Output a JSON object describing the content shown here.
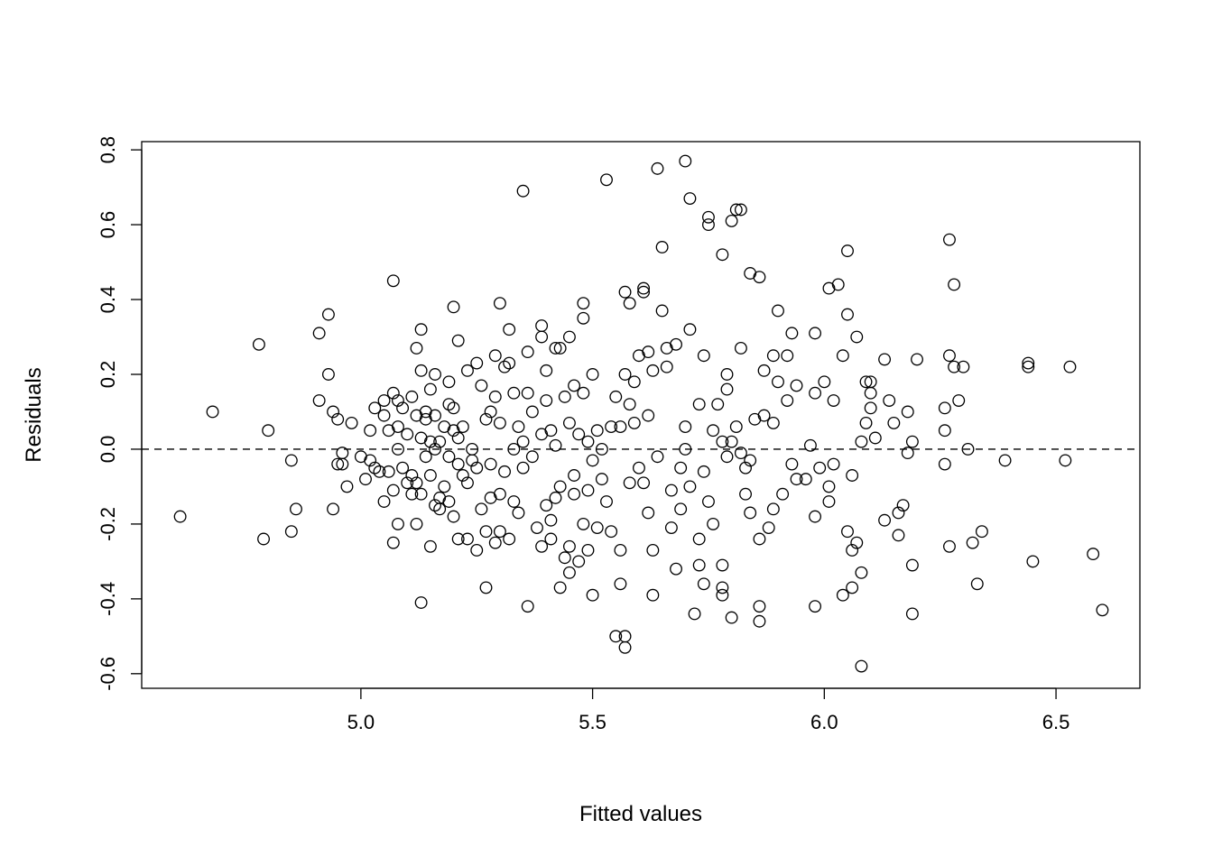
{
  "chart_data": {
    "type": "scatter",
    "title": "",
    "xlabel": "Fitted values",
    "ylabel": "Residuals",
    "xlim": [
      4.527,
      6.681
    ],
    "ylim": [
      -0.639,
      0.822
    ],
    "xticks": [
      5.0,
      5.5,
      6.0,
      6.5
    ],
    "xtick_labels": [
      "5.0",
      "5.5",
      "6.0",
      "6.5"
    ],
    "yticks": [
      -0.6,
      -0.4,
      -0.2,
      0.0,
      0.2,
      0.4,
      0.6,
      0.8
    ],
    "ytick_labels": [
      "-0.6",
      "-0.4",
      "-0.2",
      "0.0",
      "0.2",
      "0.4",
      "0.6",
      "0.8"
    ],
    "grid": false,
    "reference_line": {
      "y": 0,
      "style": "dashed"
    },
    "marker": "open-circle",
    "color": "#000000",
    "points": [
      [
        4.61,
        -0.18
      ],
      [
        4.68,
        0.1
      ],
      [
        4.78,
        0.28
      ],
      [
        4.79,
        -0.24
      ],
      [
        4.8,
        0.05
      ],
      [
        4.85,
        -0.03
      ],
      [
        4.85,
        -0.22
      ],
      [
        4.86,
        -0.16
      ],
      [
        4.91,
        0.31
      ],
      [
        4.91,
        0.13
      ],
      [
        4.93,
        0.36
      ],
      [
        4.93,
        0.2
      ],
      [
        4.94,
        0.1
      ],
      [
        4.94,
        -0.16
      ],
      [
        4.95,
        0.08
      ],
      [
        4.95,
        -0.04
      ],
      [
        4.96,
        -0.01
      ],
      [
        4.96,
        -0.04
      ],
      [
        4.97,
        -0.1
      ],
      [
        4.98,
        0.07
      ],
      [
        5.0,
        -0.02
      ],
      [
        5.01,
        -0.08
      ],
      [
        5.02,
        -0.03
      ],
      [
        5.02,
        0.05
      ],
      [
        5.03,
        -0.05
      ],
      [
        5.03,
        0.11
      ],
      [
        5.04,
        -0.06
      ],
      [
        5.05,
        0.09
      ],
      [
        5.05,
        -0.14
      ],
      [
        5.05,
        0.13
      ],
      [
        5.06,
        0.05
      ],
      [
        5.06,
        -0.06
      ],
      [
        5.07,
        0.45
      ],
      [
        5.07,
        -0.11
      ],
      [
        5.07,
        -0.25
      ],
      [
        5.07,
        0.15
      ],
      [
        5.08,
        0.06
      ],
      [
        5.08,
        0.13
      ],
      [
        5.08,
        0.0
      ],
      [
        5.08,
        -0.2
      ],
      [
        5.09,
        0.11
      ],
      [
        5.09,
        -0.05
      ],
      [
        5.1,
        -0.09
      ],
      [
        5.1,
        0.04
      ],
      [
        5.11,
        0.14
      ],
      [
        5.11,
        -0.07
      ],
      [
        5.11,
        -0.12
      ],
      [
        5.12,
        0.27
      ],
      [
        5.12,
        0.09
      ],
      [
        5.12,
        -0.2
      ],
      [
        5.12,
        -0.09
      ],
      [
        5.13,
        0.32
      ],
      [
        5.13,
        0.21
      ],
      [
        5.13,
        -0.41
      ],
      [
        5.13,
        0.03
      ],
      [
        5.13,
        -0.12
      ],
      [
        5.14,
        0.1
      ],
      [
        5.14,
        0.08
      ],
      [
        5.14,
        -0.02
      ],
      [
        5.15,
        -0.26
      ],
      [
        5.15,
        0.16
      ],
      [
        5.15,
        0.02
      ],
      [
        5.15,
        -0.07
      ],
      [
        5.16,
        0.2
      ],
      [
        5.16,
        0.09
      ],
      [
        5.16,
        -0.15
      ],
      [
        5.16,
        0.0
      ],
      [
        5.17,
        0.02
      ],
      [
        5.17,
        -0.13
      ],
      [
        5.17,
        -0.16
      ],
      [
        5.18,
        0.06
      ],
      [
        5.18,
        -0.1
      ],
      [
        5.19,
        0.18
      ],
      [
        5.19,
        0.12
      ],
      [
        5.19,
        -0.02
      ],
      [
        5.19,
        -0.14
      ],
      [
        5.2,
        0.38
      ],
      [
        5.2,
        0.11
      ],
      [
        5.2,
        -0.18
      ],
      [
        5.2,
        0.05
      ],
      [
        5.21,
        0.29
      ],
      [
        5.21,
        0.03
      ],
      [
        5.21,
        -0.24
      ],
      [
        5.21,
        -0.04
      ],
      [
        5.22,
        0.06
      ],
      [
        5.22,
        -0.07
      ],
      [
        5.23,
        0.21
      ],
      [
        5.23,
        -0.24
      ],
      [
        5.23,
        -0.09
      ],
      [
        5.24,
        0.0
      ],
      [
        5.24,
        -0.03
      ],
      [
        5.25,
        0.23
      ],
      [
        5.25,
        -0.27
      ],
      [
        5.25,
        -0.05
      ],
      [
        5.26,
        0.17
      ],
      [
        5.26,
        -0.16
      ],
      [
        5.27,
        -0.37
      ],
      [
        5.27,
        0.08
      ],
      [
        5.27,
        -0.22
      ],
      [
        5.28,
        -0.04
      ],
      [
        5.28,
        0.1
      ],
      [
        5.28,
        -0.13
      ],
      [
        5.29,
        0.25
      ],
      [
        5.29,
        0.14
      ],
      [
        5.29,
        -0.25
      ],
      [
        5.3,
        0.39
      ],
      [
        5.3,
        0.07
      ],
      [
        5.3,
        -0.22
      ],
      [
        5.3,
        -0.12
      ],
      [
        5.31,
        0.22
      ],
      [
        5.31,
        -0.06
      ],
      [
        5.32,
        0.23
      ],
      [
        5.32,
        0.32
      ],
      [
        5.32,
        -0.24
      ],
      [
        5.33,
        0.15
      ],
      [
        5.33,
        0.0
      ],
      [
        5.33,
        -0.14
      ],
      [
        5.34,
        0.06
      ],
      [
        5.34,
        -0.17
      ],
      [
        5.35,
        0.69
      ],
      [
        5.35,
        0.02
      ],
      [
        5.35,
        -0.05
      ],
      [
        5.36,
        0.26
      ],
      [
        5.36,
        0.15
      ],
      [
        5.36,
        -0.42
      ],
      [
        5.37,
        0.1
      ],
      [
        5.37,
        -0.02
      ],
      [
        5.38,
        -0.21
      ],
      [
        5.39,
        0.33
      ],
      [
        5.39,
        0.3
      ],
      [
        5.39,
        -0.26
      ],
      [
        5.39,
        0.04
      ],
      [
        5.4,
        -0.15
      ],
      [
        5.4,
        0.21
      ],
      [
        5.4,
        0.13
      ],
      [
        5.41,
        -0.24
      ],
      [
        5.41,
        0.05
      ],
      [
        5.41,
        -0.19
      ],
      [
        5.42,
        0.27
      ],
      [
        5.42,
        0.01
      ],
      [
        5.42,
        -0.13
      ],
      [
        5.43,
        0.27
      ],
      [
        5.43,
        -0.37
      ],
      [
        5.43,
        -0.1
      ],
      [
        5.44,
        0.14
      ],
      [
        5.44,
        -0.29
      ],
      [
        5.45,
        0.3
      ],
      [
        5.45,
        0.07
      ],
      [
        5.45,
        -0.33
      ],
      [
        5.45,
        -0.26
      ],
      [
        5.46,
        0.17
      ],
      [
        5.46,
        -0.07
      ],
      [
        5.46,
        -0.12
      ],
      [
        5.47,
        -0.3
      ],
      [
        5.47,
        0.04
      ],
      [
        5.48,
        0.39
      ],
      [
        5.48,
        0.35
      ],
      [
        5.48,
        0.15
      ],
      [
        5.48,
        -0.2
      ],
      [
        5.49,
        -0.27
      ],
      [
        5.49,
        0.02
      ],
      [
        5.49,
        -0.11
      ],
      [
        5.5,
        -0.39
      ],
      [
        5.5,
        0.2
      ],
      [
        5.5,
        -0.03
      ],
      [
        5.51,
        -0.21
      ],
      [
        5.51,
        0.05
      ],
      [
        5.52,
        -0.08
      ],
      [
        5.52,
        0.0
      ],
      [
        5.53,
        0.72
      ],
      [
        5.53,
        -0.14
      ],
      [
        5.54,
        -0.22
      ],
      [
        5.54,
        0.06
      ],
      [
        5.55,
        0.14
      ],
      [
        5.55,
        -0.5
      ],
      [
        5.56,
        -0.27
      ],
      [
        5.56,
        -0.36
      ],
      [
        5.56,
        0.06
      ],
      [
        5.57,
        0.42
      ],
      [
        5.57,
        -0.53
      ],
      [
        5.57,
        -0.5
      ],
      [
        5.57,
        0.2
      ],
      [
        5.58,
        0.39
      ],
      [
        5.58,
        -0.09
      ],
      [
        5.58,
        0.12
      ],
      [
        5.59,
        0.18
      ],
      [
        5.59,
        0.07
      ],
      [
        5.6,
        -0.05
      ],
      [
        5.6,
        0.25
      ],
      [
        5.61,
        0.43
      ],
      [
        5.61,
        0.42
      ],
      [
        5.61,
        -0.09
      ],
      [
        5.62,
        0.26
      ],
      [
        5.62,
        0.09
      ],
      [
        5.62,
        -0.17
      ],
      [
        5.63,
        0.21
      ],
      [
        5.63,
        -0.27
      ],
      [
        5.63,
        -0.39
      ],
      [
        5.64,
        0.75
      ],
      [
        5.64,
        -0.02
      ],
      [
        5.65,
        0.54
      ],
      [
        5.65,
        0.37
      ],
      [
        5.66,
        0.27
      ],
      [
        5.66,
        0.22
      ],
      [
        5.67,
        -0.21
      ],
      [
        5.67,
        -0.11
      ],
      [
        5.68,
        0.28
      ],
      [
        5.68,
        -0.32
      ],
      [
        5.69,
        -0.05
      ],
      [
        5.69,
        -0.16
      ],
      [
        5.7,
        0.77
      ],
      [
        5.7,
        0.06
      ],
      [
        5.7,
        0.0
      ],
      [
        5.71,
        0.67
      ],
      [
        5.71,
        0.32
      ],
      [
        5.71,
        -0.1
      ],
      [
        5.72,
        -0.44
      ],
      [
        5.73,
        -0.24
      ],
      [
        5.73,
        -0.31
      ],
      [
        5.73,
        0.12
      ],
      [
        5.74,
        0.25
      ],
      [
        5.74,
        -0.06
      ],
      [
        5.74,
        -0.36
      ],
      [
        5.75,
        0.6
      ],
      [
        5.75,
        0.62
      ],
      [
        5.75,
        -0.14
      ],
      [
        5.76,
        0.05
      ],
      [
        5.76,
        -0.2
      ],
      [
        5.77,
        0.12
      ],
      [
        5.78,
        0.52
      ],
      [
        5.78,
        0.02
      ],
      [
        5.78,
        -0.31
      ],
      [
        5.78,
        -0.37
      ],
      [
        5.78,
        -0.39
      ],
      [
        5.79,
        0.2
      ],
      [
        5.79,
        0.16
      ],
      [
        5.79,
        -0.02
      ],
      [
        5.8,
        0.61
      ],
      [
        5.8,
        0.02
      ],
      [
        5.8,
        -0.45
      ],
      [
        5.81,
        0.64
      ],
      [
        5.81,
        0.06
      ],
      [
        5.82,
        0.27
      ],
      [
        5.82,
        0.64
      ],
      [
        5.82,
        -0.01
      ],
      [
        5.83,
        -0.12
      ],
      [
        5.83,
        -0.05
      ],
      [
        5.84,
        0.47
      ],
      [
        5.84,
        -0.03
      ],
      [
        5.84,
        -0.17
      ],
      [
        5.85,
        0.08
      ],
      [
        5.86,
        0.46
      ],
      [
        5.86,
        -0.24
      ],
      [
        5.86,
        -0.42
      ],
      [
        5.86,
        -0.46
      ],
      [
        5.87,
        0.09
      ],
      [
        5.87,
        0.21
      ],
      [
        5.88,
        -0.21
      ],
      [
        5.89,
        0.25
      ],
      [
        5.89,
        0.07
      ],
      [
        5.89,
        -0.16
      ],
      [
        5.9,
        0.37
      ],
      [
        5.9,
        0.18
      ],
      [
        5.91,
        -0.12
      ],
      [
        5.92,
        0.13
      ],
      [
        5.92,
        0.25
      ],
      [
        5.93,
        0.31
      ],
      [
        5.93,
        -0.04
      ],
      [
        5.94,
        0.17
      ],
      [
        5.94,
        -0.08
      ],
      [
        5.96,
        -0.08
      ],
      [
        5.97,
        0.01
      ],
      [
        5.98,
        0.31
      ],
      [
        5.98,
        0.15
      ],
      [
        5.98,
        -0.18
      ],
      [
        5.98,
        -0.42
      ],
      [
        5.99,
        -0.05
      ],
      [
        6.0,
        0.18
      ],
      [
        6.01,
        0.43
      ],
      [
        6.01,
        -0.14
      ],
      [
        6.01,
        -0.1
      ],
      [
        6.02,
        -0.04
      ],
      [
        6.02,
        0.13
      ],
      [
        6.03,
        0.44
      ],
      [
        6.04,
        -0.39
      ],
      [
        6.04,
        0.25
      ],
      [
        6.05,
        0.53
      ],
      [
        6.05,
        0.36
      ],
      [
        6.05,
        -0.22
      ],
      [
        6.06,
        -0.37
      ],
      [
        6.06,
        -0.27
      ],
      [
        6.06,
        -0.07
      ],
      [
        6.07,
        -0.25
      ],
      [
        6.07,
        0.3
      ],
      [
        6.08,
        -0.58
      ],
      [
        6.08,
        -0.33
      ],
      [
        6.08,
        0.02
      ],
      [
        6.09,
        0.18
      ],
      [
        6.09,
        0.07
      ],
      [
        6.1,
        0.18
      ],
      [
        6.1,
        0.15
      ],
      [
        6.1,
        0.11
      ],
      [
        6.11,
        0.03
      ],
      [
        6.13,
        0.24
      ],
      [
        6.13,
        -0.19
      ],
      [
        6.14,
        0.13
      ],
      [
        6.15,
        0.07
      ],
      [
        6.16,
        -0.17
      ],
      [
        6.16,
        -0.23
      ],
      [
        6.17,
        -0.15
      ],
      [
        6.18,
        0.1
      ],
      [
        6.18,
        -0.01
      ],
      [
        6.19,
        0.02
      ],
      [
        6.19,
        -0.31
      ],
      [
        6.19,
        -0.44
      ],
      [
        6.2,
        0.24
      ],
      [
        6.26,
        0.11
      ],
      [
        6.26,
        0.05
      ],
      [
        6.26,
        -0.04
      ],
      [
        6.27,
        0.56
      ],
      [
        6.27,
        0.25
      ],
      [
        6.27,
        -0.26
      ],
      [
        6.28,
        0.44
      ],
      [
        6.28,
        0.22
      ],
      [
        6.29,
        0.13
      ],
      [
        6.3,
        0.22
      ],
      [
        6.31,
        0.0
      ],
      [
        6.32,
        -0.25
      ],
      [
        6.33,
        -0.36
      ],
      [
        6.34,
        -0.22
      ],
      [
        6.39,
        -0.03
      ],
      [
        6.44,
        0.23
      ],
      [
        6.44,
        0.22
      ],
      [
        6.45,
        -0.3
      ],
      [
        6.52,
        -0.03
      ],
      [
        6.53,
        0.22
      ],
      [
        6.58,
        -0.28
      ],
      [
        6.6,
        -0.43
      ]
    ]
  }
}
